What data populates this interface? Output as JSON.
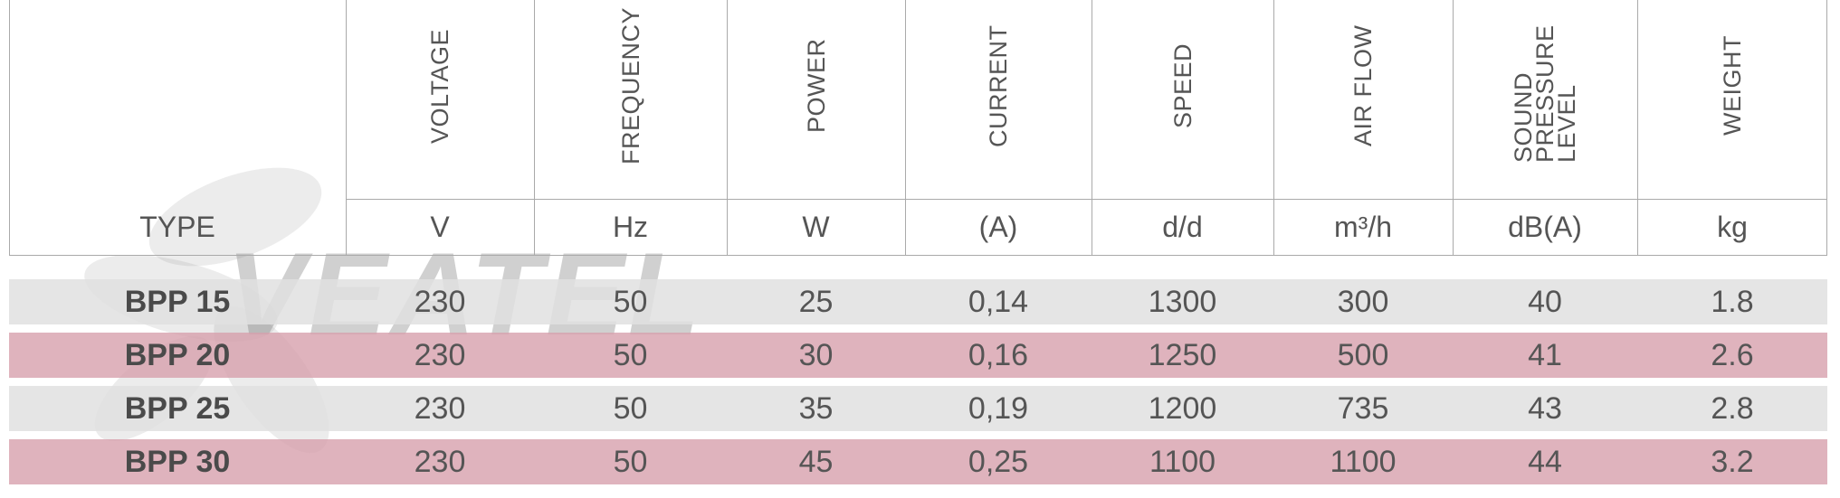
{
  "watermark": "VEATEL",
  "table": {
    "type_label": "TYPE",
    "columns": [
      {
        "label": "VOLTAGE",
        "unit": "V"
      },
      {
        "label": "FREQUENCY",
        "unit": "Hz"
      },
      {
        "label": "POWER",
        "unit": "W"
      },
      {
        "label": "CURRENT",
        "unit": "(A)"
      },
      {
        "label": "SPEED",
        "unit": "d/d"
      },
      {
        "label": "AIR FLOW",
        "unit": "m³/h"
      },
      {
        "label": "SOUND PRESSURE LEVEL",
        "unit": "dB(A)"
      },
      {
        "label": "WEIGHT",
        "unit": "kg"
      }
    ],
    "rows": [
      [
        "BPP 15",
        "230",
        "50",
        "25",
        "0,14",
        "1300",
        "300",
        "40",
        "1.8"
      ],
      [
        "BPP 20",
        "230",
        "50",
        "30",
        "0,16",
        "1250",
        "500",
        "41",
        "2.6"
      ],
      [
        "BPP 25",
        "230",
        "50",
        "35",
        "0,19",
        "1200",
        "735",
        "43",
        "2.8"
      ],
      [
        "BPP 30",
        "230",
        "50",
        "45",
        "0,25",
        "1100",
        "1100",
        "44",
        "3.2"
      ]
    ]
  }
}
